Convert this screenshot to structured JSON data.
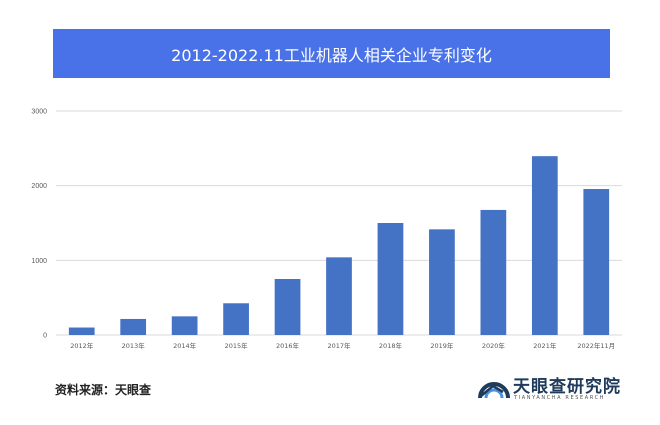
{
  "header": {
    "title": "2012-2022.11工业机器人相关企业专利变化"
  },
  "chart_data": {
    "type": "bar",
    "title": "2012-2022.11工业机器人相关企业专利变化",
    "categories": [
      "2012年",
      "2013年",
      "2014年",
      "2015年",
      "2016年",
      "2017年",
      "2018年",
      "2019年",
      "2020年",
      "2021年",
      "2022年11月"
    ],
    "series": [
      {
        "values": [
          100,
          215,
          250,
          425,
          750,
          1040,
          1500,
          1415,
          1675,
          2395,
          1955
        ]
      }
    ],
    "yticks": [
      "0",
      "1000",
      "2000",
      "3000"
    ],
    "ylim": [
      0,
      3000
    ],
    "xlabel": "",
    "ylabel": "",
    "grid": true,
    "legend": "none",
    "bar_color": "#4472c4"
  },
  "footer": {
    "source": "资料来源：天眼查"
  },
  "logo": {
    "name": "天眼查研究院",
    "subtitle": "TIANYANCHA RESEARCH",
    "icon": "tianyancha-logo-icon",
    "colors": {
      "dark": "#1f3b5c",
      "accent": "#4a90e2"
    }
  }
}
